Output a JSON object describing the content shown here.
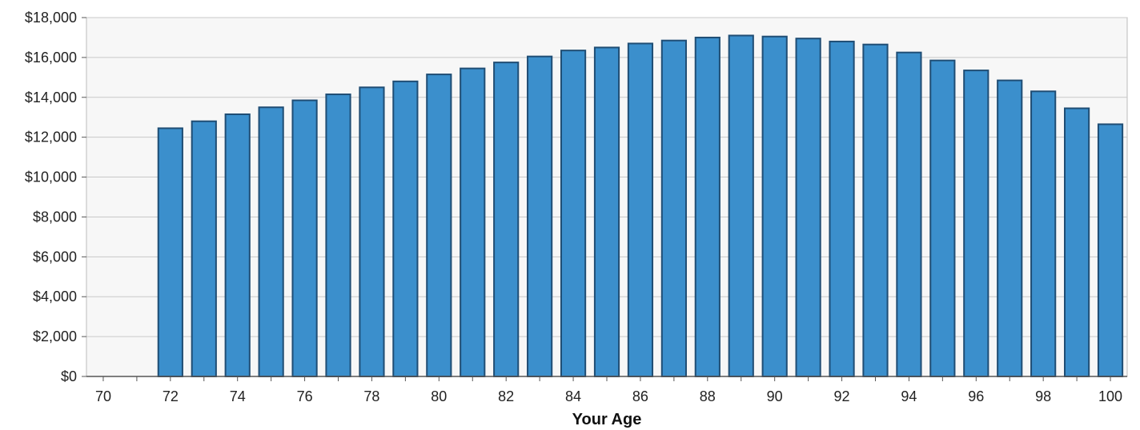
{
  "chart_data": {
    "type": "bar",
    "xlabel": "Your Age",
    "ylabel": "",
    "ylim": [
      0,
      18000
    ],
    "yticks": [
      0,
      2000,
      4000,
      6000,
      8000,
      10000,
      12000,
      14000,
      16000,
      18000
    ],
    "ytick_labels": [
      "$0",
      "$2,000",
      "$4,000",
      "$6,000",
      "$8,000",
      "$10,000",
      "$12,000",
      "$14,000",
      "$16,000",
      "$18,000"
    ],
    "xtick_labels": [
      "70",
      "72",
      "74",
      "76",
      "78",
      "80",
      "82",
      "84",
      "86",
      "88",
      "90",
      "92",
      "94",
      "96",
      "98",
      "100"
    ],
    "grid": true,
    "categories": [
      70,
      71,
      72,
      73,
      74,
      75,
      76,
      77,
      78,
      79,
      80,
      81,
      82,
      83,
      84,
      85,
      86,
      87,
      88,
      89,
      90,
      91,
      92,
      93,
      94,
      95,
      96,
      97,
      98,
      99,
      100
    ],
    "values": [
      0,
      0,
      12450,
      12800,
      13150,
      13500,
      13850,
      14150,
      14500,
      14800,
      15150,
      15450,
      15750,
      16050,
      16350,
      16500,
      16700,
      16850,
      17000,
      17100,
      17050,
      16950,
      16800,
      16650,
      16250,
      15850,
      15350,
      14850,
      14300,
      13450,
      12650
    ],
    "colors": {
      "bar_fill": "#3b8fcc",
      "bar_stroke": "#1f4d74",
      "plot_bg": "#f7f7f7"
    }
  }
}
